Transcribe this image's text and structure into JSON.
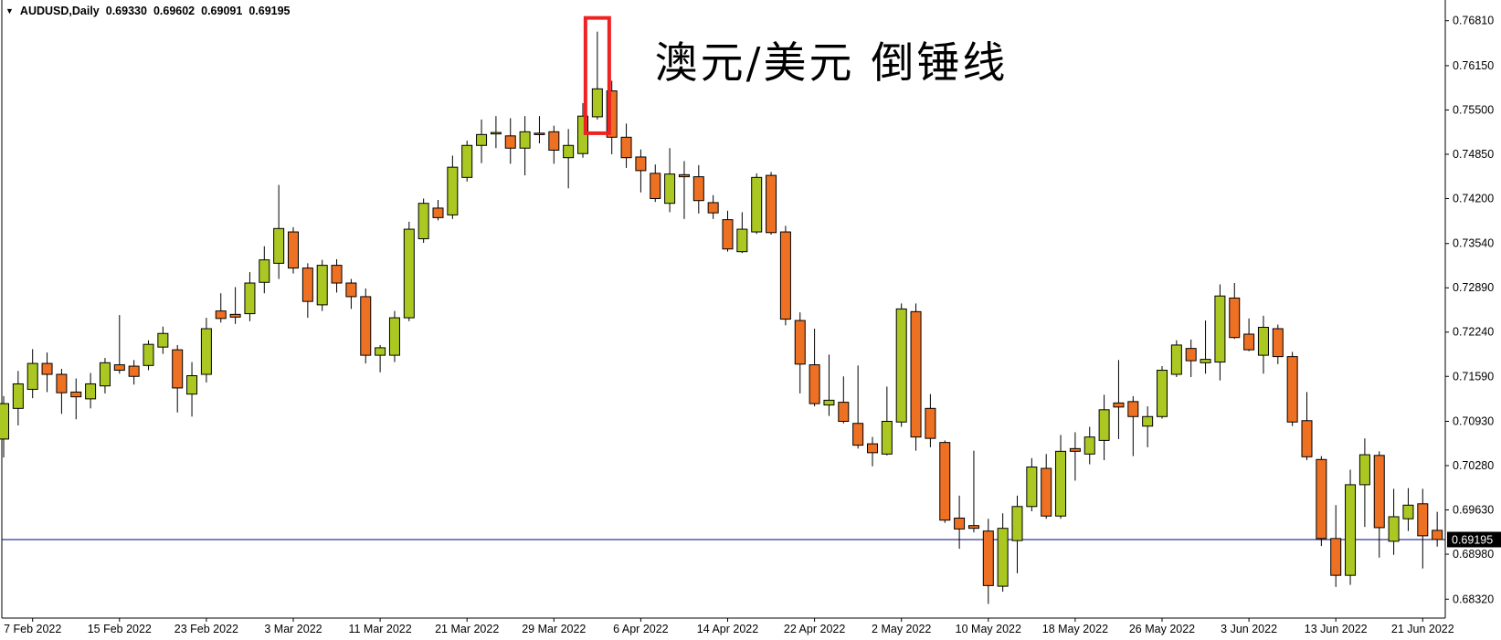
{
  "window": {
    "background": "#ffffff"
  },
  "header": {
    "dropdown_icon": "▼",
    "symbol": "AUDUSD,Daily",
    "open": "0.69330",
    "high": "0.69602",
    "low": "0.69091",
    "close": "0.69195"
  },
  "title": {
    "text": "澳元/美元 倒锤线"
  },
  "price_tag": {
    "text": "0.69195"
  },
  "colors": {
    "bull_body": "#ABC822",
    "bear_body": "#EE7022",
    "outline": "#000000",
    "axis_line": "#000000",
    "axis_text": "#000000",
    "price_line": "#000080",
    "highlight_box": "#EE2222",
    "tag_bg": "#000000",
    "tag_text": "#ffffff"
  },
  "chart_data": {
    "type": "candlestick",
    "title": "澳元/美元 倒锤线",
    "symbol": "AUDUSD",
    "timeframe": "Daily",
    "legend_position": "none",
    "grid": false,
    "current_quote": {
      "open": 0.6933,
      "high": 0.69602,
      "low": 0.69091,
      "close": 0.69195
    },
    "price_line": {
      "value": 0.69195,
      "color": "#000080"
    },
    "annotation": {
      "type": "highlight-box",
      "meaning": "inverted hammer candle (倒锤线)",
      "candle_index": 41,
      "color": "#EE2222"
    },
    "y_axis": {
      "side": "right",
      "tick_values": [
        0.7681,
        0.7615,
        0.755,
        0.7485,
        0.742,
        0.7354,
        0.7289,
        0.7224,
        0.7159,
        0.7093,
        0.7028,
        0.6963,
        0.6898,
        0.6832
      ],
      "tick_labels": [
        "0.76810",
        "0.76150",
        "0.75500",
        "0.74850",
        "0.74200",
        "0.73540",
        "0.72890",
        "0.72240",
        "0.71590",
        "0.70930",
        "0.70280",
        "0.69630",
        "0.68980",
        "0.68320"
      ],
      "min": 0.681,
      "max": 0.77
    },
    "x_axis": {
      "tick_labels": [
        "7 Feb 2022",
        "15 Feb 2022",
        "23 Feb 2022",
        "3 Mar 2022",
        "11 Mar 2022",
        "21 Mar 2022",
        "29 Mar 2022",
        "6 Apr 2022",
        "14 Apr 2022",
        "22 Apr 2022",
        "2 May 2022",
        "10 May 2022",
        "18 May 2022",
        "26 May 2022",
        "3 Jun 2022",
        "13 Jun 2022",
        "21 Jun 2022"
      ],
      "tick_candle_indices": [
        2,
        8,
        14,
        20,
        26,
        32,
        38,
        44,
        50,
        56,
        62,
        68,
        74,
        80,
        86,
        92,
        98
      ]
    },
    "candles": [
      [
        "3 Feb 2022",
        0.7067,
        0.713,
        0.704,
        0.7119
      ],
      [
        "4 Feb 2022",
        0.7112,
        0.7167,
        0.7087,
        0.7148
      ],
      [
        "7 Feb 2022",
        0.714,
        0.7199,
        0.7127,
        0.7178
      ],
      [
        "8 Feb 2022",
        0.7178,
        0.7194,
        0.7136,
        0.7162
      ],
      [
        "9 Feb 2022",
        0.7162,
        0.717,
        0.7104,
        0.7135
      ],
      [
        "10 Feb 2022",
        0.7136,
        0.7156,
        0.7096,
        0.7129
      ],
      [
        "11 Feb 2022",
        0.7126,
        0.7164,
        0.7112,
        0.7148
      ],
      [
        "14 Feb 2022",
        0.7145,
        0.7186,
        0.7134,
        0.7179
      ],
      [
        "15 Feb 2022",
        0.7176,
        0.7249,
        0.7163,
        0.7168
      ],
      [
        "16 Feb 2022",
        0.7174,
        0.7183,
        0.7147,
        0.7159
      ],
      [
        "17 Feb 2022",
        0.7175,
        0.7212,
        0.7168,
        0.7206
      ],
      [
        "18 Feb 2022",
        0.7202,
        0.7232,
        0.7192,
        0.7222
      ],
      [
        "21 Feb 2022",
        0.7198,
        0.7205,
        0.7106,
        0.7142
      ],
      [
        "22 Feb 2022",
        0.7133,
        0.718,
        0.71,
        0.716
      ],
      [
        "23 Feb 2022",
        0.7162,
        0.7245,
        0.715,
        0.7229
      ],
      [
        "24 Feb 2022",
        0.7255,
        0.7281,
        0.7238,
        0.7244
      ],
      [
        "25 Feb 2022",
        0.725,
        0.729,
        0.7236,
        0.7246
      ],
      [
        "28 Feb 2022",
        0.7251,
        0.7312,
        0.724,
        0.7296
      ],
      [
        "1 Mar 2022",
        0.7297,
        0.735,
        0.7281,
        0.733
      ],
      [
        "2 Mar 2022",
        0.7325,
        0.744,
        0.7302,
        0.7376
      ],
      [
        "3 Mar 2022",
        0.7371,
        0.7378,
        0.731,
        0.7318
      ],
      [
        "4 Mar 2022",
        0.7318,
        0.7325,
        0.7245,
        0.7269
      ],
      [
        "7 Mar 2022",
        0.7264,
        0.733,
        0.7255,
        0.7322
      ],
      [
        "8 Mar 2022",
        0.7322,
        0.7331,
        0.7282,
        0.7296
      ],
      [
        "9 Mar 2022",
        0.7296,
        0.7302,
        0.7258,
        0.7276
      ],
      [
        "10 Mar 2022",
        0.7276,
        0.7288,
        0.7178,
        0.719
      ],
      [
        "11 Mar 2022",
        0.719,
        0.7205,
        0.7165,
        0.7201
      ],
      [
        "14 Mar 2022",
        0.719,
        0.7255,
        0.718,
        0.7245
      ],
      [
        "15 Mar 2022",
        0.7245,
        0.7386,
        0.724,
        0.7375
      ],
      [
        "16 Mar 2022",
        0.7361,
        0.742,
        0.7355,
        0.7413
      ],
      [
        "17 Mar 2022",
        0.7406,
        0.7418,
        0.7388,
        0.7392
      ],
      [
        "18 Mar 2022",
        0.7396,
        0.7483,
        0.739,
        0.7466
      ],
      [
        "21 Mar 2022",
        0.7451,
        0.7505,
        0.7445,
        0.7498
      ],
      [
        "22 Mar 2022",
        0.7498,
        0.7536,
        0.7472,
        0.7514
      ],
      [
        "23 Mar 2022",
        0.7515,
        0.7541,
        0.7494,
        0.7517
      ],
      [
        "24 Mar 2022",
        0.7512,
        0.7538,
        0.7471,
        0.7494
      ],
      [
        "25 Mar 2022",
        0.7494,
        0.7541,
        0.7454,
        0.7518
      ],
      [
        "28 Mar 2022",
        0.7516,
        0.7541,
        0.7501,
        0.7514
      ],
      [
        "29 Mar 2022",
        0.7518,
        0.7527,
        0.7471,
        0.7491
      ],
      [
        "30 Mar 2022",
        0.748,
        0.7522,
        0.7435,
        0.7498
      ],
      [
        "31 Mar 2022",
        0.7486,
        0.756,
        0.748,
        0.7541
      ],
      [
        "1 Apr 2022",
        0.754,
        0.7665,
        0.7536,
        0.7581
      ],
      [
        "4 Apr 2022",
        0.7578,
        0.7593,
        0.7485,
        0.751
      ],
      [
        "5 Apr 2022",
        0.751,
        0.753,
        0.7465,
        0.748
      ],
      [
        "6 Apr 2022",
        0.7481,
        0.7492,
        0.7429,
        0.7461
      ],
      [
        "7 Apr 2022",
        0.7457,
        0.747,
        0.7415,
        0.742
      ],
      [
        "8 Apr 2022",
        0.7413,
        0.7494,
        0.74,
        0.7456
      ],
      [
        "11 Apr 2022",
        0.7455,
        0.7475,
        0.739,
        0.7452
      ],
      [
        "12 Apr 2022",
        0.7452,
        0.7469,
        0.7398,
        0.7417
      ],
      [
        "13 Apr 2022",
        0.7414,
        0.7425,
        0.739,
        0.7399
      ],
      [
        "14 Apr 2022",
        0.7389,
        0.7402,
        0.7342,
        0.7346
      ],
      [
        "15 Apr 2022",
        0.7342,
        0.74,
        0.734,
        0.7375
      ],
      [
        "18 Apr 2022",
        0.7371,
        0.7457,
        0.7368,
        0.7451
      ],
      [
        "19 Apr 2022",
        0.7454,
        0.7459,
        0.7367,
        0.737
      ],
      [
        "20 Apr 2022",
        0.7371,
        0.738,
        0.7234,
        0.7243
      ],
      [
        "21 Apr 2022",
        0.7241,
        0.7253,
        0.7134,
        0.7177
      ],
      [
        "22 Apr 2022",
        0.7176,
        0.7229,
        0.7115,
        0.7119
      ],
      [
        "25 Apr 2022",
        0.7117,
        0.7191,
        0.7101,
        0.7124
      ],
      [
        "26 Apr 2022",
        0.7121,
        0.7159,
        0.709,
        0.7093
      ],
      [
        "27 Apr 2022",
        0.709,
        0.7175,
        0.7053,
        0.7058
      ],
      [
        "28 Apr 2022",
        0.706,
        0.707,
        0.7027,
        0.7047
      ],
      [
        "29 Apr 2022",
        0.7045,
        0.7144,
        0.7043,
        0.7093
      ],
      [
        "2 May 2022",
        0.7092,
        0.7266,
        0.7085,
        0.7258
      ],
      [
        "3 May 2022",
        0.7254,
        0.7266,
        0.705,
        0.707
      ],
      [
        "4 May 2022",
        0.7112,
        0.7133,
        0.7055,
        0.7068
      ],
      [
        "5 May 2022",
        0.7062,
        0.7065,
        0.6944,
        0.6948
      ],
      [
        "6 May 2022",
        0.6951,
        0.6984,
        0.6906,
        0.6935
      ],
      [
        "9 May 2022",
        0.694,
        0.705,
        0.693,
        0.6936
      ],
      [
        "10 May 2022",
        0.6932,
        0.695,
        0.6825,
        0.6852
      ],
      [
        "11 May 2022",
        0.6851,
        0.6958,
        0.6843,
        0.6936
      ],
      [
        "12 May 2022",
        0.6918,
        0.6984,
        0.687,
        0.6968
      ],
      [
        "13 May 2022",
        0.6968,
        0.7039,
        0.6961,
        0.7026
      ],
      [
        "16 May 2022",
        0.7024,
        0.7045,
        0.695,
        0.6954
      ],
      [
        "17 May 2022",
        0.6954,
        0.7073,
        0.695,
        0.7049
      ],
      [
        "18 May 2022",
        0.7053,
        0.7077,
        0.7006,
        0.7049
      ],
      [
        "19 May 2022",
        0.7045,
        0.7085,
        0.703,
        0.707
      ],
      [
        "20 May 2022",
        0.7065,
        0.7132,
        0.7036,
        0.711
      ],
      [
        "23 May 2022",
        0.712,
        0.7183,
        0.7067,
        0.7114
      ],
      [
        "24 May 2022",
        0.7122,
        0.713,
        0.7042,
        0.71
      ],
      [
        "25 May 2022",
        0.7086,
        0.7115,
        0.7055,
        0.71
      ],
      [
        "26 May 2022",
        0.71,
        0.7174,
        0.7097,
        0.7168
      ],
      [
        "27 May 2022",
        0.7162,
        0.7212,
        0.7158,
        0.7205
      ],
      [
        "30 May 2022",
        0.72,
        0.7213,
        0.7158,
        0.7182
      ],
      [
        "31 May 2022",
        0.7179,
        0.7241,
        0.7163,
        0.7184
      ],
      [
        "1 Jun 2022",
        0.718,
        0.7294,
        0.7153,
        0.7277
      ],
      [
        "2 Jun 2022",
        0.7274,
        0.7296,
        0.7214,
        0.7216
      ],
      [
        "3 Jun 2022",
        0.7221,
        0.7244,
        0.7196,
        0.7198
      ],
      [
        "6 Jun 2022",
        0.719,
        0.7248,
        0.7163,
        0.7231
      ],
      [
        "7 Jun 2022",
        0.7229,
        0.7235,
        0.7177,
        0.7188
      ],
      [
        "8 Jun 2022",
        0.7188,
        0.7195,
        0.7086,
        0.7092
      ],
      [
        "9 Jun 2022",
        0.7094,
        0.7136,
        0.7036,
        0.7041
      ],
      [
        "10 Jun 2022",
        0.7037,
        0.7042,
        0.691,
        0.6921
      ],
      [
        "13 Jun 2022",
        0.6921,
        0.697,
        0.685,
        0.6867
      ],
      [
        "14 Jun 2022",
        0.6867,
        0.7022,
        0.6853,
        0.7
      ],
      [
        "15 Jun 2022",
        0.7,
        0.7068,
        0.6938,
        0.7044
      ],
      [
        "16 Jun 2022",
        0.7043,
        0.7049,
        0.6893,
        0.6937
      ],
      [
        "17 Jun 2022",
        0.6917,
        0.6994,
        0.6897,
        0.6953
      ],
      [
        "20 Jun 2022",
        0.695,
        0.6995,
        0.6932,
        0.697
      ],
      [
        "21 Jun 2022",
        0.6972,
        0.6994,
        0.6877,
        0.6925
      ],
      [
        "22 Jun 2022",
        0.6933,
        0.69602,
        0.69091,
        0.69195
      ]
    ]
  }
}
